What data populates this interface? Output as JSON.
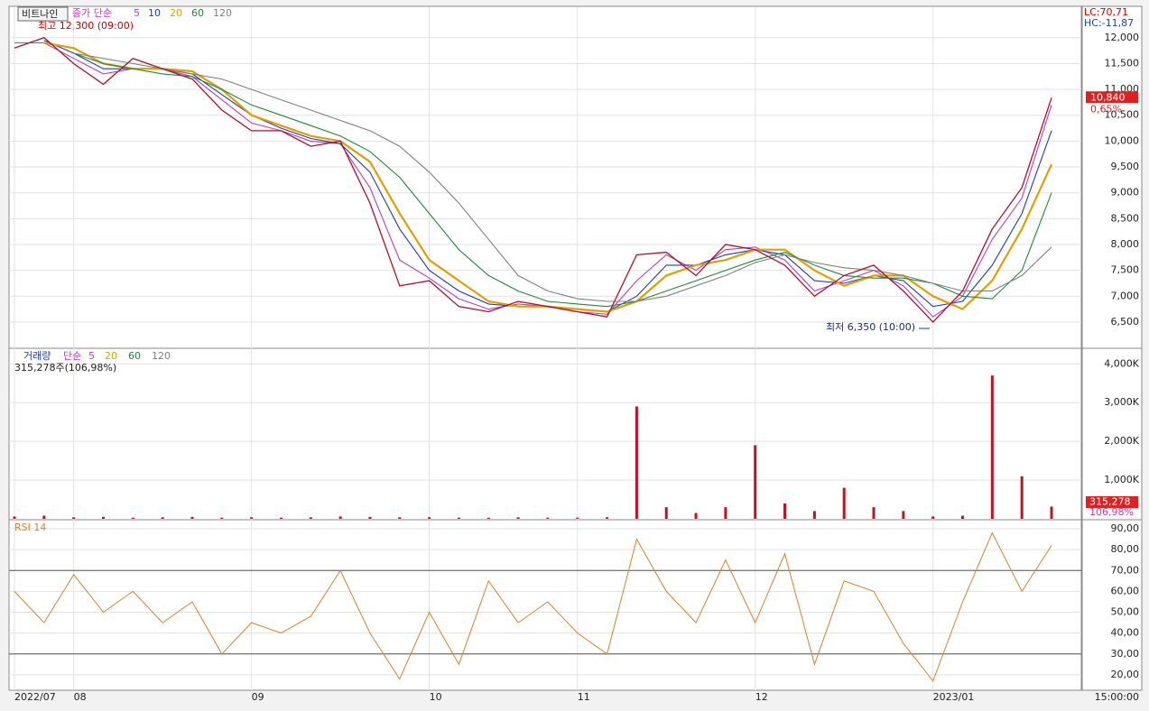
{
  "ticker": "비트나인",
  "high_note": "최고 12,300 (09:00)",
  "low_note": "최저 6,350 (10:00)",
  "lc": "LC:70,71",
  "hc": "HC:-11,87",
  "time_label": "15:00:00",
  "chart_data": [
    {
      "type": "line",
      "legend_label": "종가 단순",
      "categories": [
        "2022/07",
        null,
        "08",
        null,
        null,
        null,
        null,
        null,
        "09",
        null,
        null,
        null,
        null,
        null,
        "10",
        null,
        null,
        null,
        null,
        "11",
        null,
        null,
        null,
        null,
        null,
        "12",
        null,
        null,
        null,
        null,
        null,
        "2023/01",
        null,
        null,
        null,
        null
      ],
      "close": {
        "color": "#b0102a",
        "values": [
          11800,
          12000,
          11500,
          11100,
          11600,
          11400,
          11200,
          10600,
          10200,
          10200,
          9900,
          10000,
          8800,
          7200,
          7300,
          6800,
          6700,
          6900,
          6800,
          6700,
          6600,
          7800,
          7850,
          7400,
          8000,
          7900,
          7600,
          7000,
          7400,
          7600,
          7100,
          6500,
          7100,
          8300,
          9100,
          10840
        ]
      },
      "close_label": "10,840",
      "change_label": "0,65%",
      "series": [
        {
          "name": "5",
          "color": "#c03cc0",
          "values": [
            11900,
            11900,
            11600,
            11300,
            11400,
            11400,
            11250,
            10800,
            10350,
            10200,
            10000,
            9950,
            9100,
            7700,
            7350,
            6950,
            6750,
            6850,
            6800,
            6700,
            6650,
            7300,
            7800,
            7500,
            7900,
            7950,
            7700,
            7100,
            7300,
            7500,
            7200,
            6600,
            7000,
            8100,
            8900,
            10700
          ]
        },
        {
          "name": "10",
          "color": "#1a3cc8",
          "values": [
            null,
            11950,
            11700,
            11400,
            11400,
            11400,
            11300,
            10900,
            10500,
            10250,
            10050,
            9950,
            9400,
            8300,
            7500,
            7100,
            6850,
            6800,
            6800,
            6750,
            6700,
            7000,
            7600,
            7600,
            7800,
            7900,
            7800,
            7300,
            7250,
            7400,
            7300,
            6800,
            6900,
            7600,
            8600,
            10200
          ]
        },
        {
          "name": "20",
          "color": "#e0a000",
          "values": [
            null,
            11900,
            11800,
            11500,
            11400,
            11400,
            11350,
            11000,
            10500,
            10300,
            10100,
            10000,
            9600,
            8600,
            7700,
            7300,
            6900,
            6800,
            6800,
            6750,
            6700,
            6900,
            7400,
            7600,
            7700,
            7900,
            7900,
            7500,
            7200,
            7400,
            7400,
            7000,
            6750,
            7300,
            8300,
            9550
          ]
        },
        {
          "name": "60",
          "color": "#1e8a3c",
          "values": [
            null,
            null,
            11700,
            11500,
            11400,
            11300,
            11250,
            11000,
            10700,
            10500,
            10300,
            10100,
            9800,
            9300,
            8600,
            7900,
            7400,
            7100,
            6900,
            6850,
            6800,
            6900,
            7100,
            7300,
            7500,
            7700,
            7850,
            7600,
            7400,
            7350,
            7350,
            7250,
            7000,
            6950,
            7500,
            9000
          ]
        },
        {
          "name": "120",
          "color": "#808080",
          "values": [
            null,
            null,
            11700,
            11600,
            11500,
            11400,
            11300,
            11200,
            11000,
            10800,
            10600,
            10400,
            10200,
            9900,
            9400,
            8800,
            8100,
            7400,
            7100,
            6950,
            6900,
            6900,
            7000,
            7200,
            7400,
            7650,
            7800,
            7650,
            7550,
            7500,
            7400,
            7250,
            7100,
            7100,
            7400,
            7950
          ]
        }
      ],
      "ylim": [
        6010,
        12590
      ],
      "yticks": [
        {
          "value": 6500,
          "label": "6,500"
        },
        {
          "value": 7000,
          "label": "7,000"
        },
        {
          "value": 7500,
          "label": "7,500"
        },
        {
          "value": 8000,
          "label": "8,000"
        },
        {
          "value": 8500,
          "label": "8,500"
        },
        {
          "value": 9000,
          "label": "9,000"
        },
        {
          "value": 9500,
          "label": "9,500"
        },
        {
          "value": 10000,
          "label": "10,000"
        },
        {
          "value": 10500,
          "label": "10,500"
        },
        {
          "value": 11000,
          "label": "11,000"
        },
        {
          "value": 11500,
          "label": "11,500"
        },
        {
          "value": 12000,
          "label": "12,000"
        }
      ],
      "grid": true
    },
    {
      "type": "bar",
      "title": "거래량",
      "legend_label": "단순",
      "legend_items": [
        {
          "name": "5",
          "color": "#c03cc0"
        },
        {
          "name": "20",
          "color": "#e0a000"
        },
        {
          "name": "60",
          "color": "#1e8a3c"
        },
        {
          "name": "120",
          "color": "#808080"
        }
      ],
      "info": "315,278주(106,98%)",
      "last_label": "315,278",
      "ratio_label": "106,98%",
      "color": "#c0102a",
      "values": [
        60000,
        80000,
        40000,
        50000,
        30000,
        40000,
        50000,
        30000,
        40000,
        30000,
        40000,
        60000,
        50000,
        40000,
        40000,
        30000,
        30000,
        40000,
        30000,
        30000,
        40000,
        2900000,
        300000,
        150000,
        300000,
        1900000,
        400000,
        200000,
        800000,
        300000,
        200000,
        60000,
        80000,
        3700000,
        1100000,
        315278
      ],
      "ylim": [
        0,
        4380000
      ],
      "yticks": [
        {
          "value": 1000000,
          "label": "1,000K"
        },
        {
          "value": 2000000,
          "label": "2,000K"
        },
        {
          "value": 3000000,
          "label": "3,000K"
        },
        {
          "value": 4000000,
          "label": "4,000K"
        }
      ],
      "grid": true
    },
    {
      "type": "line",
      "title": "RSI 14",
      "color": "#d9822b",
      "values": [
        60,
        45,
        68,
        50,
        60,
        45,
        55,
        30,
        45,
        40,
        48,
        70,
        40,
        18,
        50,
        25,
        65,
        45,
        55,
        40,
        30,
        85,
        60,
        45,
        75,
        45,
        78,
        25,
        65,
        60,
        35,
        17,
        55,
        88,
        60,
        82
      ],
      "ylim": [
        12.6,
        93.9
      ],
      "yticks": [
        {
          "value": 20,
          "label": "20,00"
        },
        {
          "value": 30,
          "label": "30,00"
        },
        {
          "value": 40,
          "label": "40,00"
        },
        {
          "value": 50,
          "label": "50,00"
        },
        {
          "value": 60,
          "label": "60,00"
        },
        {
          "value": 70,
          "label": "70,00"
        },
        {
          "value": 80,
          "label": "80,00"
        },
        {
          "value": 90,
          "label": "90,00"
        }
      ],
      "hlines": [
        30,
        70
      ],
      "grid": true
    }
  ]
}
